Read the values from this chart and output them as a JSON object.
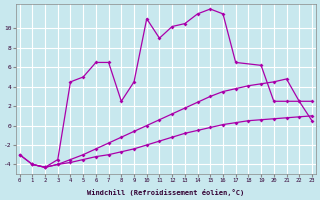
{
  "xlabel": "Windchill (Refroidissement éolien,°C)",
  "background_color": "#c8e8ee",
  "line_color": "#aa00aa",
  "grid_color": "#ffffff",
  "xlim": [
    -0.3,
    23.3
  ],
  "ylim": [
    -5.0,
    12.5
  ],
  "yticks": [
    -4,
    -2,
    0,
    2,
    4,
    6,
    8,
    10
  ],
  "xticks": [
    0,
    1,
    2,
    3,
    4,
    5,
    6,
    7,
    8,
    9,
    10,
    11,
    12,
    13,
    14,
    15,
    16,
    17,
    18,
    19,
    20,
    21,
    22,
    23
  ],
  "line1_x": [
    0,
    1,
    2,
    3,
    4,
    5,
    6,
    7,
    8,
    9,
    10,
    11,
    12,
    13,
    14,
    15,
    16,
    17,
    18,
    19,
    20,
    21,
    22,
    23
  ],
  "line1_y": [
    -3.0,
    -4.0,
    -4.3,
    -4.0,
    -3.8,
    -3.5,
    -3.2,
    -3.0,
    -2.7,
    -2.4,
    -2.0,
    -1.6,
    -1.2,
    -0.8,
    -0.5,
    -0.2,
    0.1,
    0.3,
    0.5,
    0.6,
    0.7,
    0.8,
    0.9,
    1.0
  ],
  "line2_x": [
    0,
    1,
    2,
    3,
    4,
    5,
    6,
    7,
    8,
    9,
    10,
    11,
    12,
    13,
    14,
    15,
    16,
    17,
    18,
    19,
    20,
    21,
    22,
    23
  ],
  "line2_y": [
    -3.0,
    -4.0,
    -4.3,
    -4.0,
    -3.5,
    -3.0,
    -2.4,
    -1.8,
    -1.2,
    -0.6,
    0.0,
    0.6,
    1.2,
    1.8,
    2.4,
    3.0,
    3.5,
    3.8,
    4.1,
    4.3,
    4.5,
    4.8,
    2.5,
    0.5
  ],
  "line3_x": [
    1,
    2,
    3,
    4,
    5,
    6,
    7,
    8,
    9,
    10,
    11,
    12,
    13,
    14,
    15,
    16,
    17,
    19,
    20,
    21,
    22,
    23
  ],
  "line3_y": [
    -4.0,
    -4.3,
    -3.5,
    4.5,
    5.0,
    6.5,
    6.5,
    2.5,
    4.5,
    11.0,
    9.0,
    10.2,
    10.5,
    11.5,
    12.0,
    11.5,
    6.5,
    6.2,
    2.5,
    2.5,
    2.5,
    2.5
  ]
}
